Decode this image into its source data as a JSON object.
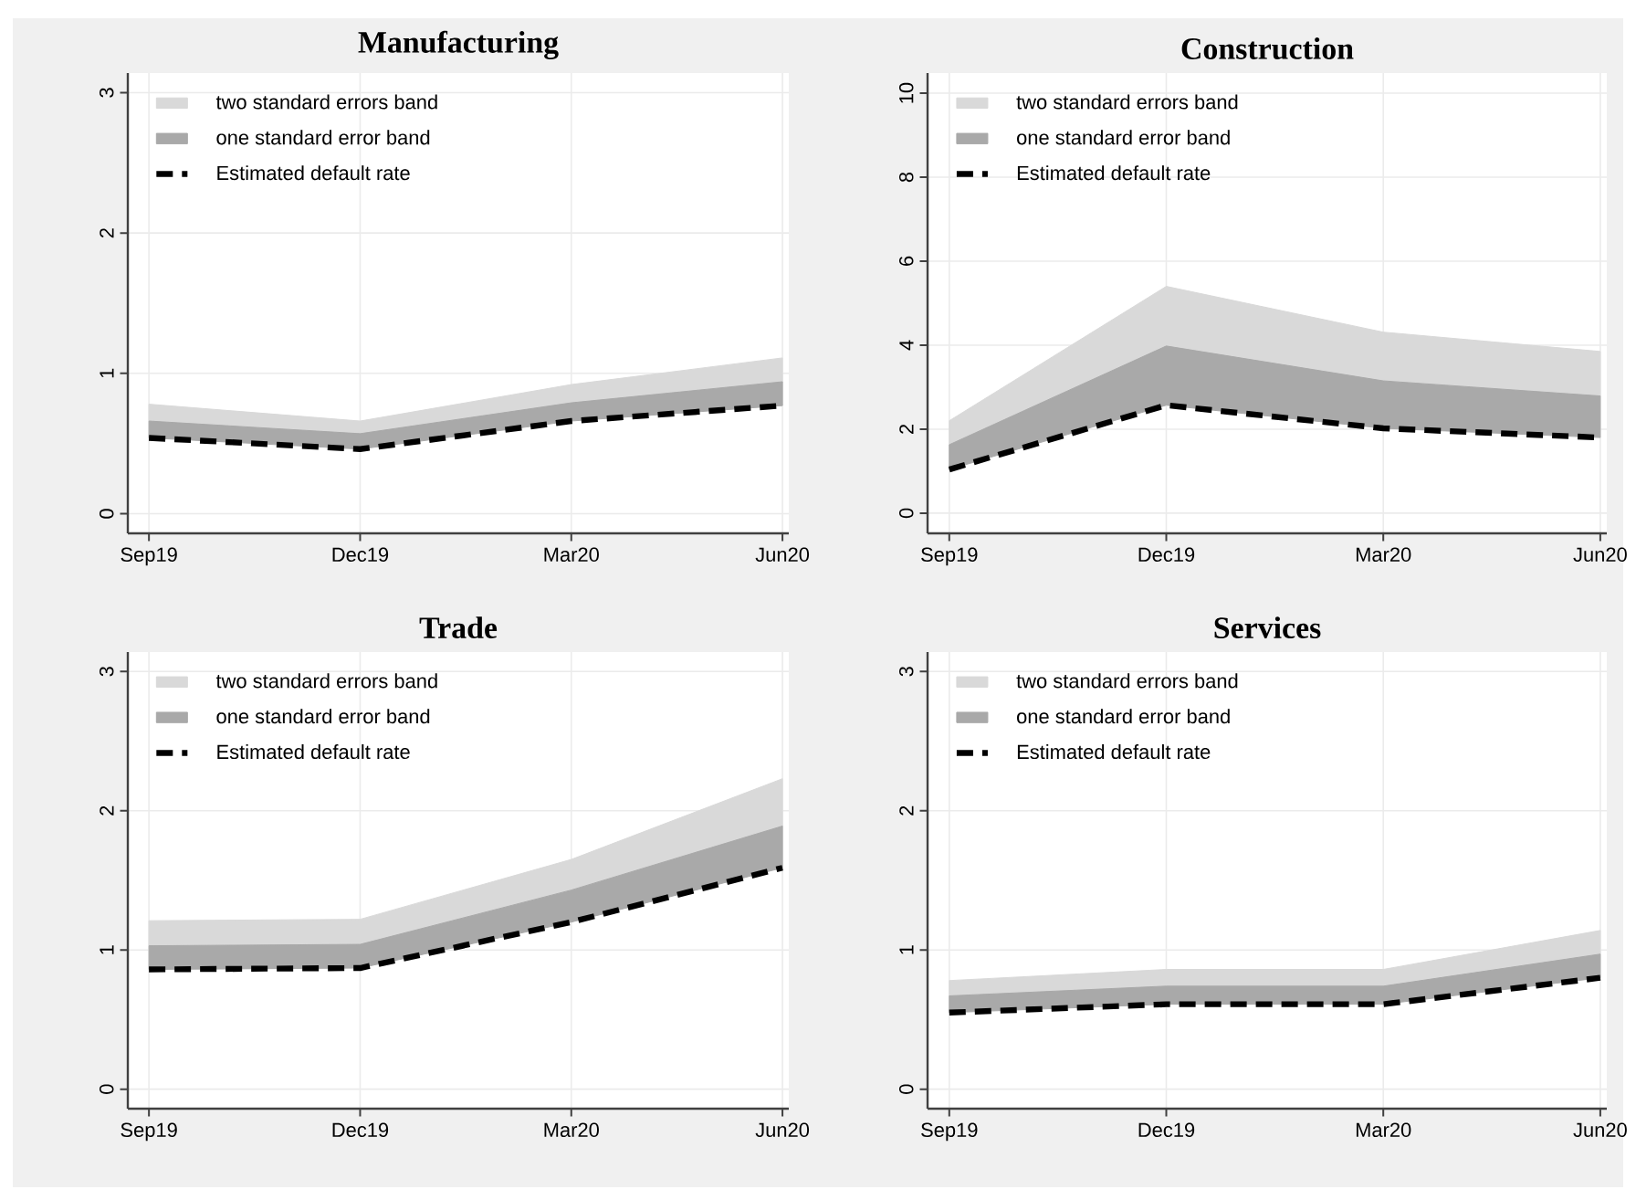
{
  "chart_data": [
    {
      "type": "line",
      "title": "Manufacturing",
      "categories": [
        "Sep19",
        "Dec19",
        "Mar20",
        "Jun20"
      ],
      "ylim": [
        -0.14,
        3.14
      ],
      "yticks": [
        0,
        1,
        2,
        3
      ],
      "grid": true,
      "legend": "top left",
      "series": [
        {
          "name": "two standard errors band",
          "type": "area",
          "color": "#d9d9d9",
          "values": [
            null,
            null,
            null,
            null
          ],
          "lower": [
            0.66,
            0.57,
            0.79,
            0.94
          ],
          "upper": [
            0.78,
            0.66,
            0.92,
            1.11
          ]
        },
        {
          "name": "one standard error band",
          "type": "area",
          "color": "#a9a9a9",
          "values": [
            null,
            null,
            null,
            null
          ],
          "lower": [
            0.54,
            0.46,
            0.66,
            0.77
          ],
          "upper": [
            0.66,
            0.57,
            0.79,
            0.94
          ]
        },
        {
          "name": "Estimated default rate",
          "type": "line",
          "color": "#000000",
          "line_style": "dashed",
          "values": [
            0.54,
            0.46,
            0.66,
            0.77
          ]
        }
      ]
    },
    {
      "type": "line",
      "title": "Construction",
      "categories": [
        "Sep19",
        "Dec19",
        "Mar20",
        "Jun20"
      ],
      "ylim": [
        -0.48,
        10.48
      ],
      "yticks": [
        0,
        2,
        4,
        6,
        8,
        10
      ],
      "grid": true,
      "legend": "top left",
      "series": [
        {
          "name": "two standard errors band",
          "type": "area",
          "color": "#d9d9d9",
          "values": [
            null,
            null,
            null,
            null
          ],
          "lower": [
            1.63,
            3.98,
            3.15,
            2.79
          ],
          "upper": [
            2.2,
            5.4,
            4.31,
            3.85
          ]
        },
        {
          "name": "one standard error band",
          "type": "area",
          "color": "#a9a9a9",
          "values": [
            null,
            null,
            null,
            null
          ],
          "lower": [
            1.04,
            2.57,
            2.02,
            1.8
          ],
          "upper": [
            1.63,
            3.98,
            3.15,
            2.79
          ]
        },
        {
          "name": "Estimated default rate",
          "type": "line",
          "color": "#000000",
          "line_style": "dashed",
          "values": [
            1.04,
            2.57,
            2.02,
            1.8
          ]
        }
      ]
    },
    {
      "type": "line",
      "title": "Trade",
      "categories": [
        "Sep19",
        "Dec19",
        "Mar20",
        "Jun20"
      ],
      "ylim": [
        -0.14,
        3.14
      ],
      "yticks": [
        0,
        1,
        2,
        3
      ],
      "grid": true,
      "legend": "top left",
      "series": [
        {
          "name": "two standard errors band",
          "type": "area",
          "color": "#d9d9d9",
          "values": [
            null,
            null,
            null,
            null
          ],
          "lower": [
            1.03,
            1.04,
            1.43,
            1.89
          ],
          "upper": [
            1.21,
            1.22,
            1.65,
            2.23
          ]
        },
        {
          "name": "one standard error band",
          "type": "area",
          "color": "#a9a9a9",
          "values": [
            null,
            null,
            null,
            null
          ],
          "lower": [
            0.86,
            0.87,
            1.2,
            1.59
          ],
          "upper": [
            1.03,
            1.04,
            1.43,
            1.89
          ]
        },
        {
          "name": "Estimated default rate",
          "type": "line",
          "color": "#000000",
          "line_style": "dashed",
          "values": [
            0.86,
            0.87,
            1.2,
            1.59
          ]
        }
      ]
    },
    {
      "type": "line",
      "title": "Services",
      "categories": [
        "Sep19",
        "Dec19",
        "Mar20",
        "Jun20"
      ],
      "ylim": [
        -0.14,
        3.14
      ],
      "yticks": [
        0,
        1,
        2,
        3
      ],
      "grid": true,
      "legend": "top left",
      "series": [
        {
          "name": "two standard errors band",
          "type": "area",
          "color": "#d9d9d9",
          "values": [
            null,
            null,
            null,
            null
          ],
          "lower": [
            0.67,
            0.74,
            0.74,
            0.97
          ],
          "upper": [
            0.78,
            0.86,
            0.86,
            1.14
          ]
        },
        {
          "name": "one standard error band",
          "type": "area",
          "color": "#a9a9a9",
          "values": [
            null,
            null,
            null,
            null
          ],
          "lower": [
            0.55,
            0.61,
            0.61,
            0.8
          ],
          "upper": [
            0.67,
            0.74,
            0.74,
            0.97
          ]
        },
        {
          "name": "Estimated default rate",
          "type": "line",
          "color": "#000000",
          "line_style": "dashed",
          "values": [
            0.55,
            0.61,
            0.61,
            0.8
          ]
        }
      ]
    }
  ]
}
